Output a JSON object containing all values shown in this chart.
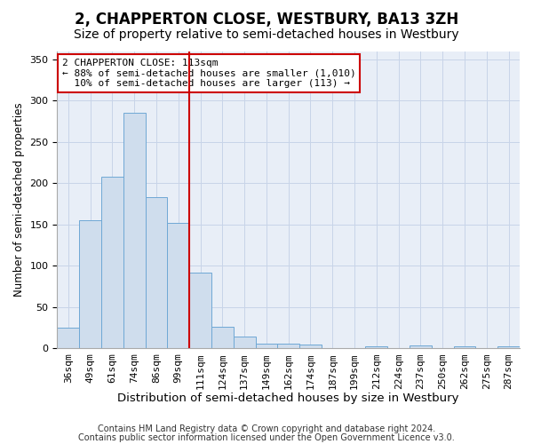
{
  "title": "2, CHAPPERTON CLOSE, WESTBURY, BA13 3ZH",
  "subtitle": "Size of property relative to semi-detached houses in Westbury",
  "xlabel": "Distribution of semi-detached houses by size in Westbury",
  "ylabel": "Number of semi-detached properties",
  "categories": [
    "36sqm",
    "49sqm",
    "61sqm",
    "74sqm",
    "86sqm",
    "99sqm",
    "111sqm",
    "124sqm",
    "137sqm",
    "149sqm",
    "162sqm",
    "174sqm",
    "187sqm",
    "199sqm",
    "212sqm",
    "224sqm",
    "237sqm",
    "250sqm",
    "262sqm",
    "275sqm",
    "287sqm"
  ],
  "values": [
    25,
    155,
    208,
    285,
    183,
    152,
    92,
    26,
    14,
    6,
    6,
    5,
    1,
    0,
    3,
    0,
    4,
    0,
    3,
    0,
    3
  ],
  "bar_color": "#cfdded",
  "bar_edge_color": "#6fa8d5",
  "property_line_x": 5.5,
  "property_line_color": "#cc0000",
  "annotation_text": "2 CHAPPERTON CLOSE: 113sqm\n← 88% of semi-detached houses are smaller (1,010)\n  10% of semi-detached houses are larger (113) →",
  "annotation_box_color": "#cc0000",
  "footer_line1": "Contains HM Land Registry data © Crown copyright and database right 2024.",
  "footer_line2": "Contains public sector information licensed under the Open Government Licence v3.0.",
  "ylim": [
    0,
    360
  ],
  "yticks": [
    0,
    50,
    100,
    150,
    200,
    250,
    300,
    350
  ],
  "title_fontsize": 12,
  "subtitle_fontsize": 10,
  "xlabel_fontsize": 9.5,
  "ylabel_fontsize": 8.5,
  "tick_fontsize": 8,
  "annot_fontsize": 8,
  "footer_fontsize": 7,
  "background_color": "#ffffff",
  "ax_bg_color": "#e8eef7",
  "grid_color": "#c8d4e8"
}
